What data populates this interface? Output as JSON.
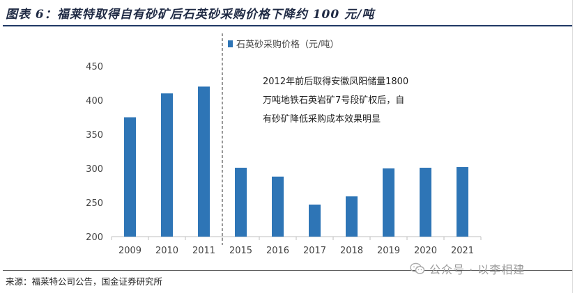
{
  "figure": {
    "title": "图表 6：福莱特取得自有砂矿后石英砂采购价格下降约 100 元/吨",
    "source": "来源：福莱特公司公告，国金证券研究所",
    "watermark": "公众号 · 以李相建"
  },
  "chart_data": {
    "type": "bar",
    "categories": [
      "2009",
      "2010",
      "2011",
      "2015",
      "2016",
      "2017",
      "2018",
      "2019",
      "2020",
      "2021"
    ],
    "series": [
      {
        "name": "石英砂采购价格（元/吨）",
        "values": [
          375,
          410,
          420,
          301,
          288,
          247,
          259,
          300,
          301,
          302
        ]
      }
    ],
    "ylim": [
      200,
      450
    ],
    "yticks": [
      "200",
      "250",
      "300",
      "350",
      "400",
      "450"
    ],
    "grid": false,
    "legend": "top",
    "bar_color": "#2e75b6",
    "annotation": {
      "lines": [
        "2012年前后取得安徽凤阳储量1800",
        "万吨地铁石英岩矿7号段矿权后，自",
        "有砂矿降低采购成本效果明显"
      ]
    },
    "divider_after": "2011"
  }
}
